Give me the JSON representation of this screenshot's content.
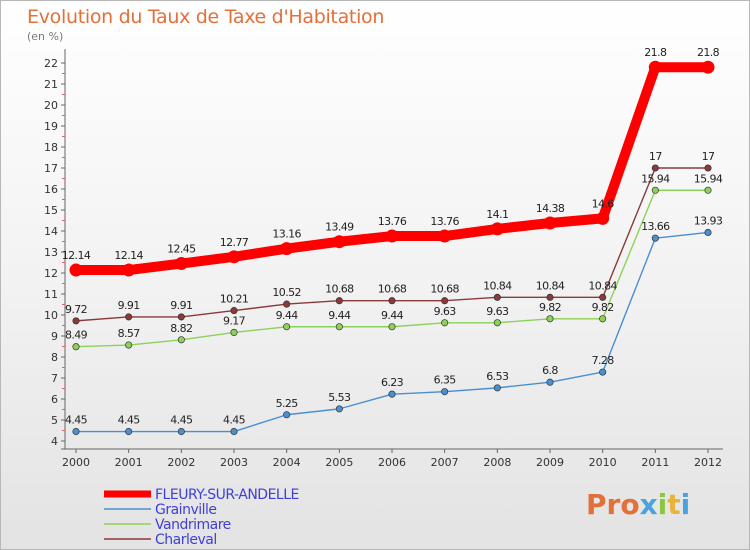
{
  "title": "Evolution du Taux de Taxe d'Habitation",
  "subtitle": "(en %)",
  "logo": {
    "text": "Proxiti",
    "colors": [
      "#e36f39",
      "#e36f39",
      "#e36f39",
      "#4aa3df",
      "#8cc63f",
      "#e8b43a",
      "#4aa3df"
    ]
  },
  "chart_data": {
    "type": "line",
    "x": [
      "2000",
      "2001",
      "2002",
      "2003",
      "2004",
      "2005",
      "2006",
      "2007",
      "2008",
      "2009",
      "2010",
      "2011",
      "2012"
    ],
    "ylim": [
      4,
      22
    ],
    "yticks": [
      4,
      5,
      6,
      7,
      8,
      9,
      10,
      11,
      12,
      13,
      14,
      15,
      16,
      17,
      18,
      19,
      20,
      21,
      22
    ],
    "grid": false,
    "legend_position": "bottom-left",
    "series": [
      {
        "name": "FLEURY-SUR-ANDELLE",
        "color": "#ff0000",
        "values": [
          12.14,
          12.14,
          12.45,
          12.77,
          13.16,
          13.49,
          13.76,
          13.76,
          14.1,
          14.38,
          14.6,
          21.8,
          21.8
        ],
        "labels": [
          "12.14",
          "12.14",
          "12.45",
          "12.77",
          "13.16",
          "13.49",
          "13.76",
          "13.76",
          "14.1",
          "14.38",
          "14.6",
          "21.8",
          "21.8"
        ]
      },
      {
        "name": "Grainville",
        "color": "#4a8fcf",
        "values": [
          4.45,
          4.45,
          4.45,
          4.45,
          5.25,
          5.53,
          6.23,
          6.35,
          6.53,
          6.8,
          7.28,
          13.66,
          13.93
        ],
        "labels": [
          "4.45",
          "4.45",
          "4.45",
          "4.45",
          "5.25",
          "5.53",
          "6.23",
          "6.35",
          "6.53",
          "6.8",
          "7.28",
          "13.66",
          "13.93"
        ]
      },
      {
        "name": "Vandrimare",
        "color": "#8ed15a",
        "values": [
          8.49,
          8.57,
          8.82,
          9.17,
          9.44,
          9.44,
          9.44,
          9.63,
          9.63,
          9.82,
          9.82,
          15.94,
          15.94
        ],
        "labels": [
          "8.49",
          "8.57",
          "8.82",
          "9.17",
          "9.44",
          "9.44",
          "9.44",
          "9.63",
          "9.63",
          "9.82",
          "9.82",
          "15.94",
          "15.94"
        ]
      },
      {
        "name": "Charleval",
        "color": "#8b3a3a",
        "values": [
          9.72,
          9.91,
          9.91,
          10.21,
          10.52,
          10.68,
          10.68,
          10.68,
          10.84,
          10.84,
          10.84,
          17,
          17
        ],
        "labels": [
          "9.72",
          "9.91",
          "9.91",
          "10.21",
          "10.52",
          "10.68",
          "10.68",
          "10.68",
          "10.84",
          "10.84",
          "10.84",
          "17",
          "17"
        ]
      }
    ]
  }
}
